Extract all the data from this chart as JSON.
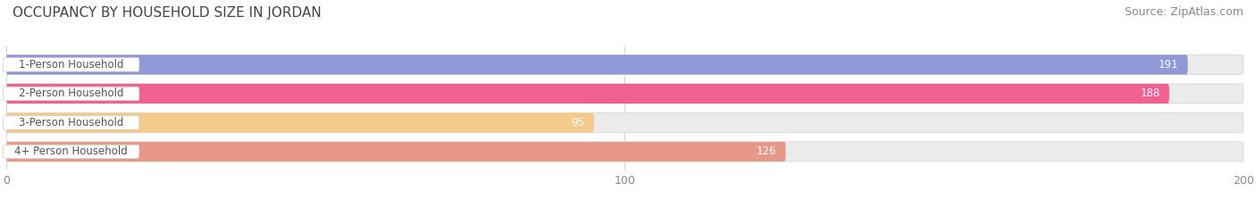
{
  "title": "OCCUPANCY BY HOUSEHOLD SIZE IN JORDAN",
  "source": "Source: ZipAtlas.com",
  "categories": [
    "1-Person Household",
    "2-Person Household",
    "3-Person Household",
    "4+ Person Household"
  ],
  "values": [
    191,
    188,
    95,
    126
  ],
  "bar_colors": [
    "#9099d8",
    "#f06090",
    "#f5c98a",
    "#e89888"
  ],
  "xlim": [
    0,
    200
  ],
  "xticks": [
    0,
    100,
    200
  ],
  "title_fontsize": 11,
  "source_fontsize": 9,
  "bar_label_fontsize": 8.5,
  "cat_label_fontsize": 8.5,
  "tick_fontsize": 9,
  "background_color": "#ffffff",
  "bar_bg_color": "#ebebeb"
}
